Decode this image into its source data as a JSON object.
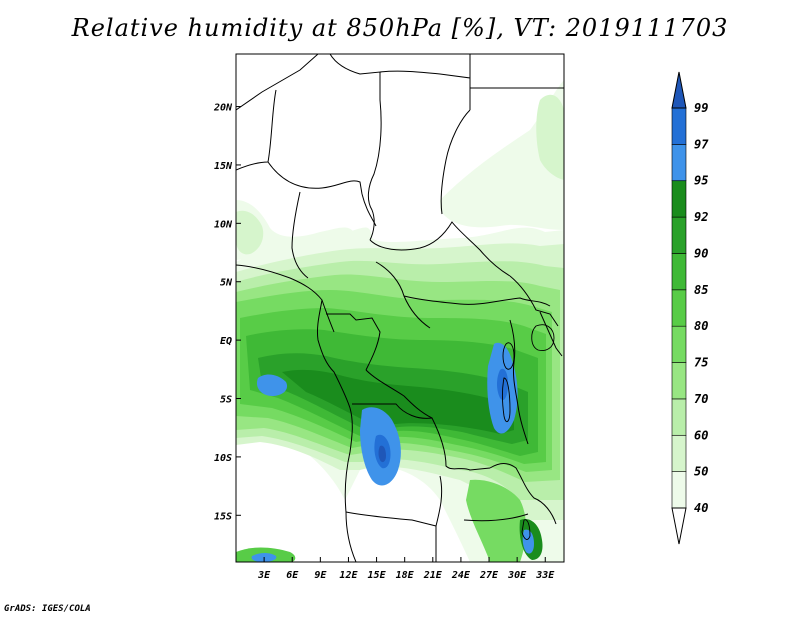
{
  "title": "Relative humidity at 850hPa [%], VT: 2019111703",
  "credit": "GrADS: IGES/COLA",
  "map": {
    "lon_range": [
      0,
      35
    ],
    "lat_range": [
      -19,
      24.5
    ],
    "lon_ticks": [
      {
        "v": 3,
        "label": "3E"
      },
      {
        "v": 6,
        "label": "6E"
      },
      {
        "v": 9,
        "label": "9E"
      },
      {
        "v": 12,
        "label": "12E"
      },
      {
        "v": 15,
        "label": "15E"
      },
      {
        "v": 18,
        "label": "18E"
      },
      {
        "v": 21,
        "label": "21E"
      },
      {
        "v": 24,
        "label": "24E"
      },
      {
        "v": 27,
        "label": "27E"
      },
      {
        "v": 30,
        "label": "30E"
      },
      {
        "v": 33,
        "label": "33E"
      }
    ],
    "lat_ticks": [
      {
        "v": 20,
        "label": "20N"
      },
      {
        "v": 15,
        "label": "15N"
      },
      {
        "v": 10,
        "label": "10N"
      },
      {
        "v": 5,
        "label": "5N"
      },
      {
        "v": 0,
        "label": "EQ"
      },
      {
        "v": -5,
        "label": "5S"
      },
      {
        "v": -10,
        "label": "10S"
      },
      {
        "v": -15,
        "label": "15S"
      }
    ]
  },
  "legend": {
    "levels": [
      {
        "label": "40",
        "color": "#eefbea"
      },
      {
        "label": "50",
        "color": "#d6f5cc"
      },
      {
        "label": "60",
        "color": "#b9eeaa"
      },
      {
        "label": "70",
        "color": "#98e683"
      },
      {
        "label": "75",
        "color": "#76db62"
      },
      {
        "label": "80",
        "color": "#58cc47"
      },
      {
        "label": "85",
        "color": "#3fb936"
      },
      {
        "label": "90",
        "color": "#2aa12a"
      },
      {
        "label": "92",
        "color": "#1a8c1d"
      },
      {
        "label": "95",
        "color": "#3f93ea"
      },
      {
        "label": "97",
        "color": "#2370d6"
      },
      {
        "label": "99",
        "color": "#1f57b8"
      }
    ]
  },
  "colors": {
    "frame": "#000000",
    "boundary": "#000000",
    "background": "#ffffff"
  }
}
